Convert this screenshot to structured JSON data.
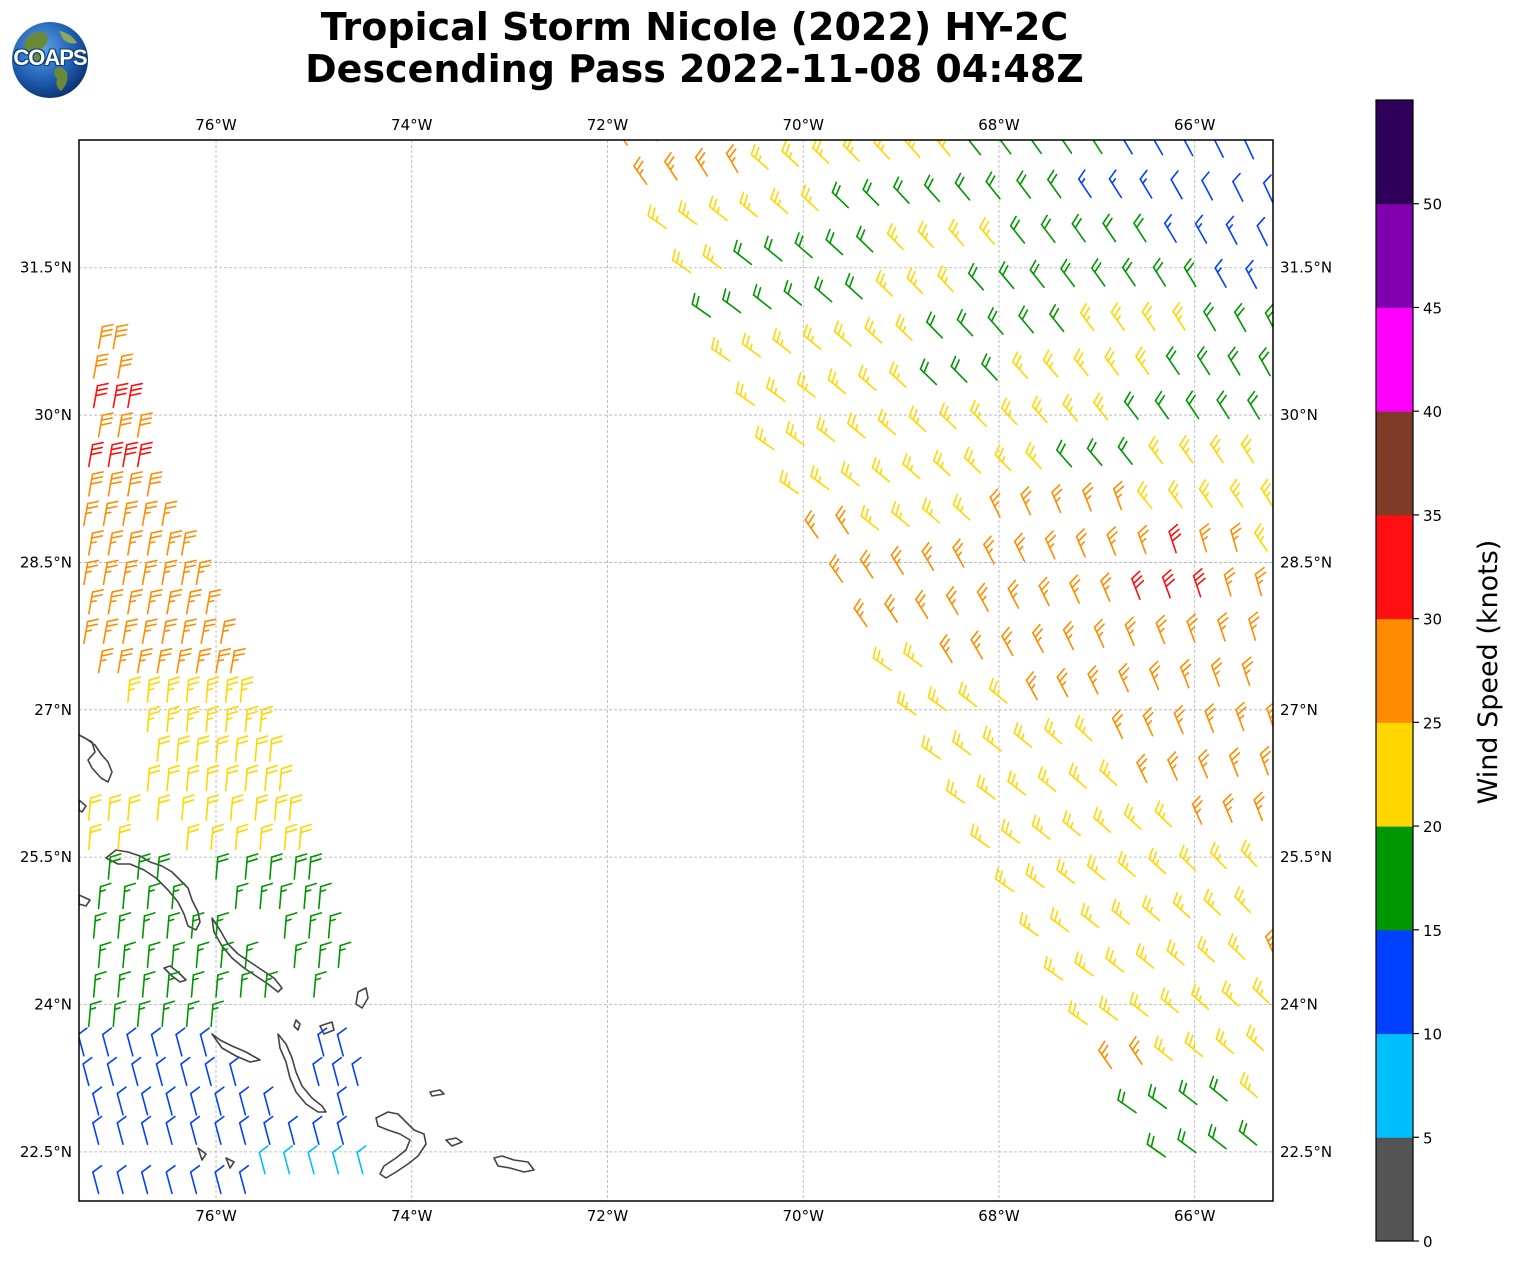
{
  "header": {
    "title_line1": "Tropical Storm Nicole (2022) HY-2C",
    "title_line2": "Descending Pass 2022-11-08 04:48Z"
  },
  "logo": {
    "text": "COAPS",
    "icon": "globe-icon"
  },
  "map": {
    "lon_range": [
      -77.4,
      -65.2
    ],
    "lat_range": [
      22.0,
      32.8
    ],
    "lon_ticks": [
      {
        "value": -76,
        "label": "76°W"
      },
      {
        "value": -74,
        "label": "74°W"
      },
      {
        "value": -72,
        "label": "72°W"
      },
      {
        "value": -70,
        "label": "70°W"
      },
      {
        "value": -68,
        "label": "68°W"
      },
      {
        "value": -66,
        "label": "66°W"
      }
    ],
    "lat_ticks": [
      {
        "value": 31.5,
        "label": "31.5°N"
      },
      {
        "value": 30.0,
        "label": "30°N"
      },
      {
        "value": 28.5,
        "label": "28.5°N"
      },
      {
        "value": 27.0,
        "label": "27°N"
      },
      {
        "value": 25.5,
        "label": "25.5°N"
      },
      {
        "value": 24.0,
        "label": "24°N"
      },
      {
        "value": 22.5,
        "label": "22.5°N"
      }
    ],
    "coastline_color": "#444444",
    "gridline_color": "#b0b0b0"
  },
  "colorbar": {
    "label": "Wind Speed (knots)",
    "ticks": [
      "0",
      "5",
      "10",
      "15",
      "20",
      "25",
      "30",
      "35",
      "40",
      "45",
      "50"
    ],
    "bins": [
      {
        "min": 0,
        "max": 5,
        "color": "#555555"
      },
      {
        "min": 5,
        "max": 10,
        "color": "#00bfff"
      },
      {
        "min": 10,
        "max": 15,
        "color": "#0040ff"
      },
      {
        "min": 15,
        "max": 20,
        "color": "#009600"
      },
      {
        "min": 20,
        "max": 25,
        "color": "#ffd700"
      },
      {
        "min": 25,
        "max": 30,
        "color": "#ff8c00"
      },
      {
        "min": 30,
        "max": 35,
        "color": "#ff0f0f"
      },
      {
        "min": 35,
        "max": 40,
        "color": "#803a28"
      },
      {
        "min": 40,
        "max": 45,
        "color": "#ff00ff"
      },
      {
        "min": 45,
        "max": 50,
        "color": "#8000b0"
      },
      {
        "min": 50,
        "max": 55,
        "color": "#2e005a"
      }
    ]
  },
  "chart_data": {
    "type": "wind-barbs",
    "title": "Tropical Storm Nicole (2022) HY-2C Descending Pass 2022-11-08 04:48Z",
    "units": "knots",
    "west_swath": [
      {
        "lat": 30.8,
        "lons": [
          -77.2,
          -77.05
        ],
        "speed": 28
      },
      {
        "lat": 30.5,
        "lons": [
          -77.25,
          -77.0
        ],
        "speed": 28
      },
      {
        "lat": 30.2,
        "lons": [
          -77.25,
          -77.05,
          -76.9
        ],
        "speed": 31
      },
      {
        "lat": 29.9,
        "lons": [
          -77.2,
          -77.0,
          -76.8
        ],
        "speed": 29
      },
      {
        "lat": 29.6,
        "lons": [
          -77.3,
          -77.1,
          -76.95,
          -76.8
        ],
        "speed": 31
      },
      {
        "lat": 29.3,
        "lons": [
          -77.3,
          -77.1,
          -76.9,
          -76.7
        ],
        "speed": 28
      },
      {
        "lat": 29.0,
        "lons": [
          -77.35,
          -77.15,
          -76.95,
          -76.75,
          -76.55
        ],
        "speed": 27
      },
      {
        "lat": 28.7,
        "lons": [
          -77.3,
          -77.1,
          -76.9,
          -76.7,
          -76.5,
          -76.35
        ],
        "speed": 27
      },
      {
        "lat": 28.4,
        "lons": [
          -77.35,
          -77.15,
          -76.95,
          -76.75,
          -76.55,
          -76.35,
          -76.2
        ],
        "speed": 27
      },
      {
        "lat": 28.1,
        "lons": [
          -77.3,
          -77.1,
          -76.9,
          -76.7,
          -76.5,
          -76.3,
          -76.1
        ],
        "speed": 26
      },
      {
        "lat": 27.8,
        "lons": [
          -77.35,
          -77.15,
          -76.95,
          -76.75,
          -76.55,
          -76.35,
          -76.15,
          -75.95
        ],
        "speed": 27
      },
      {
        "lat": 27.5,
        "lons": [
          -77.2,
          -77.0,
          -76.8,
          -76.6,
          -76.4,
          -76.2,
          -76.0,
          -75.85
        ],
        "speed": 26
      },
      {
        "lat": 27.2,
        "lons": [
          -76.9,
          -76.7,
          -76.5,
          -76.3,
          -76.1,
          -75.9,
          -75.75
        ],
        "speed": 24
      },
      {
        "lat": 26.9,
        "lons": [
          -76.7,
          -76.5,
          -76.3,
          -76.1,
          -75.9,
          -75.7,
          -75.55
        ],
        "speed": 23
      },
      {
        "lat": 26.6,
        "lons": [
          -76.6,
          -76.4,
          -76.2,
          -76.0,
          -75.8,
          -75.6,
          -75.45
        ],
        "speed": 22
      },
      {
        "lat": 26.3,
        "lons": [
          -76.7,
          -76.5,
          -76.3,
          -76.1,
          -75.9,
          -75.7,
          -75.5,
          -75.35
        ],
        "speed": 22
      },
      {
        "lat": 26.0,
        "lons": [
          -77.3,
          -77.1,
          -76.9,
          -76.6,
          -76.35,
          -76.1,
          -75.85,
          -75.6,
          -75.4,
          -75.25
        ],
        "speed": 22
      },
      {
        "lat": 25.7,
        "lons": [
          -77.3,
          -77.0,
          -76.3,
          -76.05,
          -75.8,
          -75.55,
          -75.3,
          -75.15
        ],
        "speed": 21
      },
      {
        "lat": 25.4,
        "lons": [
          -77.1,
          -76.8,
          -76.6,
          -76.0,
          -75.7,
          -75.45,
          -75.2,
          -75.05
        ],
        "speed": 18
      },
      {
        "lat": 25.1,
        "lons": [
          -77.2,
          -76.95,
          -76.7,
          -76.45,
          -75.8,
          -75.55,
          -75.35,
          -75.1,
          -74.95
        ],
        "speed": 17
      },
      {
        "lat": 24.8,
        "lons": [
          -77.25,
          -77.0,
          -76.75,
          -76.5,
          -76.25,
          -76.0,
          -75.3,
          -75.05,
          -74.85
        ],
        "speed": 17
      },
      {
        "lat": 24.5,
        "lons": [
          -77.2,
          -76.95,
          -76.7,
          -76.45,
          -76.2,
          -75.95,
          -75.7,
          -75.2,
          -74.95,
          -74.75
        ],
        "speed": 16
      },
      {
        "lat": 24.2,
        "lons": [
          -77.25,
          -77.0,
          -76.75,
          -76.5,
          -76.25,
          -76.0,
          -75.75,
          -75.5,
          -75.0
        ],
        "speed": 16
      },
      {
        "lat": 23.9,
        "lons": [
          -77.3,
          -77.05,
          -76.8,
          -76.55,
          -76.3,
          -76.05
        ],
        "speed": 15
      },
      {
        "lat": 23.6,
        "lons": [
          -77.35,
          -77.1,
          -76.85,
          -76.6,
          -76.35,
          -76.1,
          -74.9,
          -74.7
        ],
        "speed": 12
      },
      {
        "lat": 23.3,
        "lons": [
          -77.3,
          -77.05,
          -76.8,
          -76.55,
          -76.3,
          -76.05,
          -75.8,
          -74.95,
          -74.75,
          -74.55
        ],
        "speed": 12
      },
      {
        "lat": 23.0,
        "lons": [
          -77.2,
          -76.95,
          -76.7,
          -76.45,
          -76.2,
          -75.95,
          -75.7,
          -75.45,
          -74.7
        ],
        "speed": 11
      },
      {
        "lat": 22.7,
        "lons": [
          -77.2,
          -76.95,
          -76.7,
          -76.45,
          -76.2,
          -75.95,
          -75.7,
          -75.45,
          -75.2,
          -74.95,
          -74.7
        ],
        "speed": 11
      },
      {
        "lat": 22.4,
        "lons": [
          -75.5,
          -75.25,
          -75.0,
          -74.75,
          -74.5
        ],
        "speed": 8
      },
      {
        "lat": 22.2,
        "lons": [
          -77.2,
          -76.95,
          -76.7,
          -76.45,
          -76.2,
          -75.95,
          -75.7
        ],
        "speed": 11
      }
    ],
    "east_swath_rows": [
      {
        "lat_start": 32.75,
        "lon_start": -71.8,
        "speed_profile": [
          27,
          27,
          23,
          23,
          23,
          23,
          18,
          18,
          18,
          17,
          13,
          13,
          12
        ]
      },
      {
        "lat_start": 32.35,
        "lon_start": -71.6,
        "speed_profile": [
          27,
          27,
          23,
          23,
          23,
          23,
          18,
          18,
          18,
          13,
          13,
          12,
          12
        ]
      },
      {
        "lat_start": 31.9,
        "lon_start": -71.4,
        "speed_profile": [
          23,
          23,
          23,
          18,
          18,
          18,
          18,
          18,
          13,
          13,
          12,
          12,
          12
        ]
      },
      {
        "lat_start": 31.45,
        "lon_start": -71.15,
        "speed_profile": [
          23,
          18,
          18,
          18,
          23,
          23,
          18,
          18,
          18,
          13,
          13,
          12,
          12
        ]
      },
      {
        "lat_start": 31.0,
        "lon_start": -70.95,
        "speed_profile": [
          18,
          18,
          18,
          23,
          23,
          18,
          18,
          18,
          18,
          18,
          13,
          13,
          12
        ]
      },
      {
        "lat_start": 30.55,
        "lon_start": -70.75,
        "speed_profile": [
          23,
          23,
          23,
          23,
          18,
          18,
          18,
          23,
          23,
          18,
          18,
          13,
          12
        ]
      },
      {
        "lat_start": 30.1,
        "lon_start": -70.5,
        "speed_profile": [
          23,
          23,
          23,
          18,
          18,
          23,
          23,
          23,
          18,
          18,
          18,
          18,
          17
        ]
      },
      {
        "lat_start": 29.65,
        "lon_start": -70.3,
        "speed_profile": [
          23,
          23,
          23,
          23,
          23,
          23,
          23,
          18,
          18,
          18,
          18,
          18,
          17
        ]
      },
      {
        "lat_start": 29.2,
        "lon_start": -70.05,
        "speed_profile": [
          23,
          23,
          23,
          23,
          23,
          18,
          18,
          23,
          23,
          23,
          18,
          18,
          18
        ]
      },
      {
        "lat_start": 28.75,
        "lon_start": -69.85,
        "speed_profile": [
          27,
          23,
          23,
          27,
          27,
          27,
          23,
          23,
          23,
          23,
          18,
          18,
          18
        ]
      },
      {
        "lat_start": 28.3,
        "lon_start": -69.6,
        "speed_profile": [
          27,
          27,
          27,
          27,
          27,
          27,
          31,
          27,
          23,
          23,
          23,
          23,
          18
        ]
      },
      {
        "lat_start": 27.85,
        "lon_start": -69.35,
        "speed_profile": [
          27,
          27,
          27,
          27,
          27,
          31,
          31,
          27,
          27,
          23,
          23,
          23,
          23
        ]
      },
      {
        "lat_start": 27.4,
        "lon_start": -69.1,
        "speed_profile": [
          23,
          27,
          27,
          27,
          27,
          27,
          27,
          27,
          27,
          23,
          23,
          23,
          23
        ]
      },
      {
        "lat_start": 26.95,
        "lon_start": -68.85,
        "speed_profile": [
          23,
          23,
          27,
          27,
          27,
          27,
          27,
          27,
          23,
          23,
          18,
          23,
          23
        ]
      },
      {
        "lat_start": 26.5,
        "lon_start": -68.6,
        "speed_profile": [
          23,
          23,
          23,
          27,
          27,
          27,
          27,
          27,
          27,
          23,
          23,
          23,
          23
        ]
      },
      {
        "lat_start": 26.05,
        "lon_start": -68.35,
        "speed_profile": [
          23,
          23,
          23,
          27,
          27,
          27,
          27,
          23,
          23,
          23,
          23,
          23,
          23
        ]
      },
      {
        "lat_start": 25.6,
        "lon_start": -68.1,
        "speed_profile": [
          23,
          23,
          23,
          23,
          27,
          27,
          27,
          27,
          23,
          23,
          23,
          23,
          23
        ]
      },
      {
        "lat_start": 25.15,
        "lon_start": -67.85,
        "speed_profile": [
          23,
          23,
          23,
          23,
          23,
          27,
          27,
          23,
          23,
          23,
          23,
          23,
          23
        ]
      },
      {
        "lat_start": 24.7,
        "lon_start": -67.6,
        "speed_profile": [
          23,
          23,
          23,
          23,
          23,
          23,
          27,
          27,
          23,
          23,
          23,
          23,
          23
        ]
      },
      {
        "lat_start": 24.25,
        "lon_start": -67.35,
        "speed_profile": [
          23,
          23,
          23,
          23,
          27,
          27,
          23,
          23,
          23,
          23,
          23,
          23,
          23
        ]
      },
      {
        "lat_start": 23.8,
        "lon_start": -67.1,
        "speed_profile": [
          23,
          23,
          23,
          23,
          27,
          27,
          23,
          23,
          23,
          23,
          23,
          23,
          23
        ]
      },
      {
        "lat_start": 23.35,
        "lon_start": -66.85,
        "speed_profile": [
          27,
          23,
          23,
          23,
          23,
          23,
          23,
          23,
          23,
          23,
          23,
          23,
          23
        ]
      },
      {
        "lat_start": 22.9,
        "lon_start": -66.6,
        "speed_profile": [
          18,
          18,
          23,
          23,
          23,
          23,
          23,
          23,
          23,
          23,
          23,
          23,
          23
        ]
      },
      {
        "lat_start": 22.45,
        "lon_start": -66.3,
        "speed_profile": [
          18,
          18,
          18,
          18,
          23,
          23,
          23,
          23,
          23,
          23,
          23,
          23,
          23
        ]
      }
    ]
  }
}
